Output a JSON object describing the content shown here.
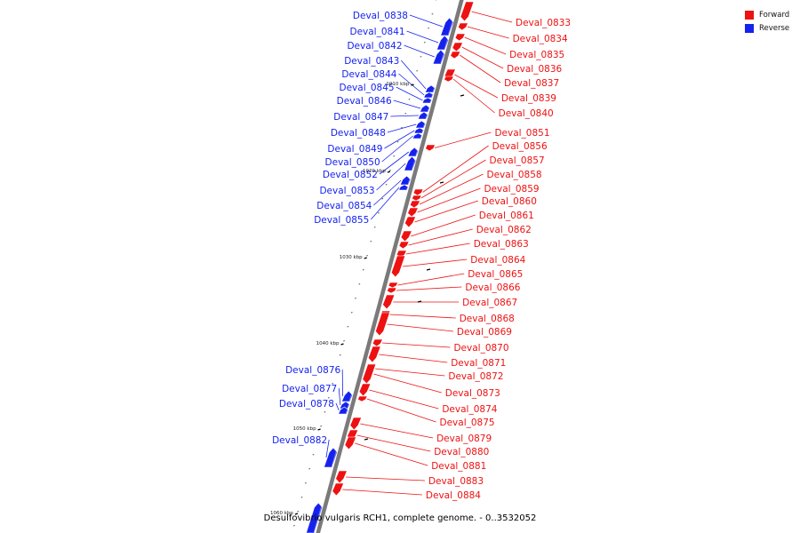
{
  "colors": {
    "forward": "#ee1111",
    "reverse": "#1522ee",
    "backbone": "#7a7a7a"
  },
  "legend": [
    {
      "label": "Forward",
      "color": "#ee1111"
    },
    {
      "label": "Reverse",
      "color": "#1522ee"
    }
  ],
  "caption": "Desulfovibrio vulgaris RCH1, complete genome. - 0..3532052",
  "scale_labels": [
    "1010 kbp",
    "1020 kbp",
    "1030 kbp",
    "1040 kbp",
    "1050 kbp",
    "1060 kbp"
  ],
  "forward_genes": [
    "Deval_0833",
    "Deval_0834",
    "Deval_0835",
    "Deval_0836",
    "Deval_0837",
    "Deval_0839",
    "Deval_0840",
    "Deval_0851",
    "Deval_0856",
    "Deval_0857",
    "Deval_0858",
    "Deval_0859",
    "Deval_0860",
    "Deval_0861",
    "Deval_0862",
    "Deval_0863",
    "Deval_0864",
    "Deval_0865",
    "Deval_0866",
    "Deval_0867",
    "Deval_0868",
    "Deval_0869",
    "Deval_0870",
    "Deval_0871",
    "Deval_0872",
    "Deval_0873",
    "Deval_0874",
    "Deval_0875",
    "Deval_0879",
    "Deval_0880",
    "Deval_0881",
    "Deval_0883",
    "Deval_0884"
  ],
  "reverse_genes": [
    "Deval_0838",
    "Deval_0841",
    "Deval_0842",
    "Deval_0843",
    "Deval_0844",
    "Deval_0845",
    "Deval_0846",
    "Deval_0847",
    "Deval_0848",
    "Deval_0849",
    "Deval_0850",
    "Deval_0852",
    "Deval_0853",
    "Deval_0854",
    "Deval_0855",
    "Deval_0876",
    "Deval_0877",
    "Deval_0878",
    "Deval_0882"
  ]
}
